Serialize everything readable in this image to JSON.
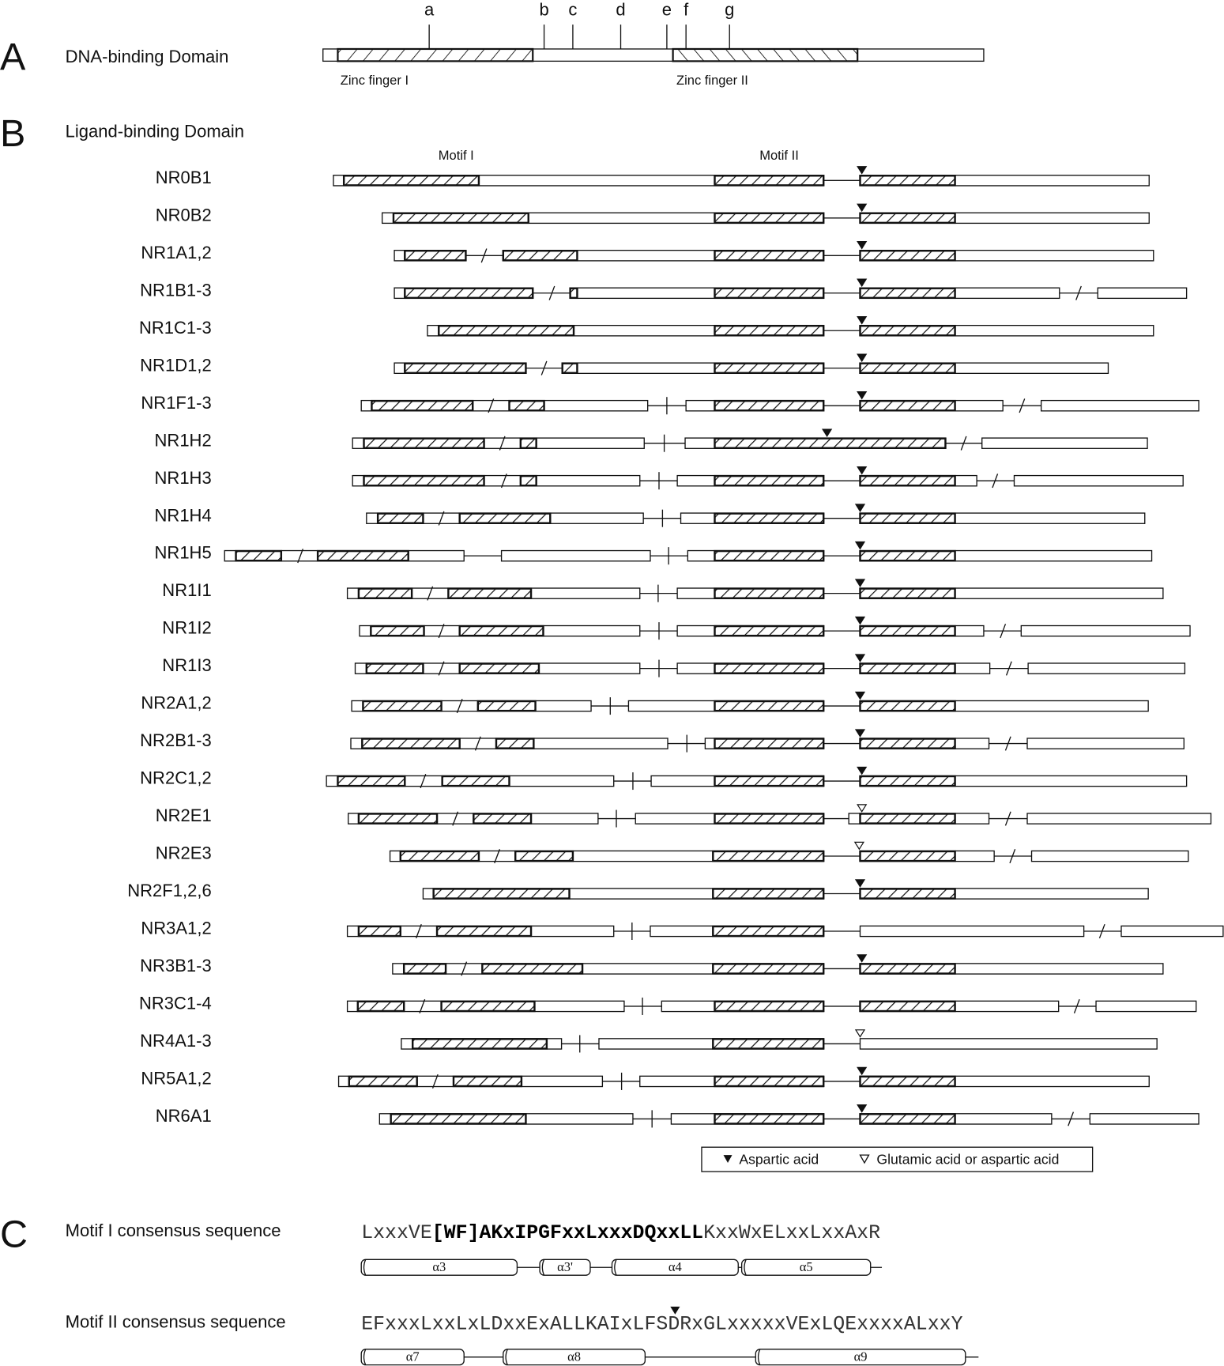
{
  "panel_a": {
    "label": "A",
    "title": "DNA-binding Domain",
    "sites": [
      "a",
      "b",
      "c",
      "d",
      "e",
      "f",
      "g"
    ],
    "zinc_fingers": [
      "Zinc finger I",
      "Zinc finger II"
    ]
  },
  "panel_b": {
    "label": "B",
    "title": "Ligand-binding Domain",
    "motifs": [
      "Motif I",
      "Motif II"
    ],
    "rows": [
      "NR0B1",
      "NR0B2",
      "NR1A1,2",
      "NR1B1-3",
      "NR1C1-3",
      "NR1D1,2",
      "NR1F1-3",
      "NR1H2",
      "NR1H3",
      "NR1H4",
      "NR1H5",
      "NR1I1",
      "NR1I2",
      "NR1I3",
      "NR2A1,2",
      "NR2B1-3",
      "NR2C1,2",
      "NR2E1",
      "NR2E3",
      "NR2F1,2,6",
      "NR3A1,2",
      "NR3B1-3",
      "NR3C1-4",
      "NR4A1-3",
      "NR5A1,2",
      "NR6A1"
    ],
    "legend": [
      "Aspartic acid",
      "Glutamic acid or aspartic acid"
    ]
  },
  "panel_c": {
    "label": "C",
    "motif1": {
      "title": "Motif  I consensus sequence",
      "sequence": [
        "LxxxVE",
        "[WF]AKxIPGFxxLxxxDQxxLL",
        "KxxWxELxxLxxAxR"
      ],
      "helices": [
        "α3",
        "α3'",
        "α4",
        "α5"
      ]
    },
    "motif2": {
      "title": "Motif II consensus sequence",
      "sequence": "EFxxxLxxLxLDxxExALLKAIxLFSDRxGLxxxxxVExLQExxxxALxxY",
      "helices": [
        "α7",
        "α8",
        "α9"
      ]
    }
  }
}
